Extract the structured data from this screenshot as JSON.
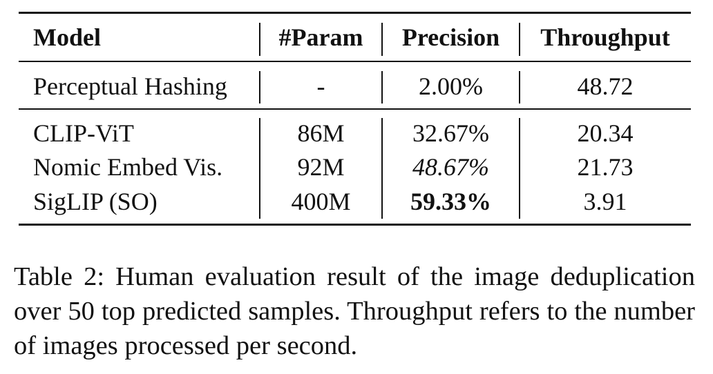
{
  "table": {
    "header": [
      "Model",
      "#Param",
      "Precision",
      "Throughput"
    ],
    "rows": [
      [
        "Perceptual Hashing",
        "-",
        "2.00%",
        "48.72"
      ],
      [
        "CLIP-ViT",
        "86M",
        "32.67%",
        "20.34"
      ],
      [
        "Nomic Embed Vis.",
        "92M",
        "48.67%",
        "21.73"
      ],
      [
        "SigLIP (SO)",
        "400M",
        "59.33%",
        "3.91"
      ]
    ]
  },
  "caption": "Table 2: Human evaluation result of the image deduplication over 50 top predicted samples. Throughput refers to the number of images processed per second."
}
